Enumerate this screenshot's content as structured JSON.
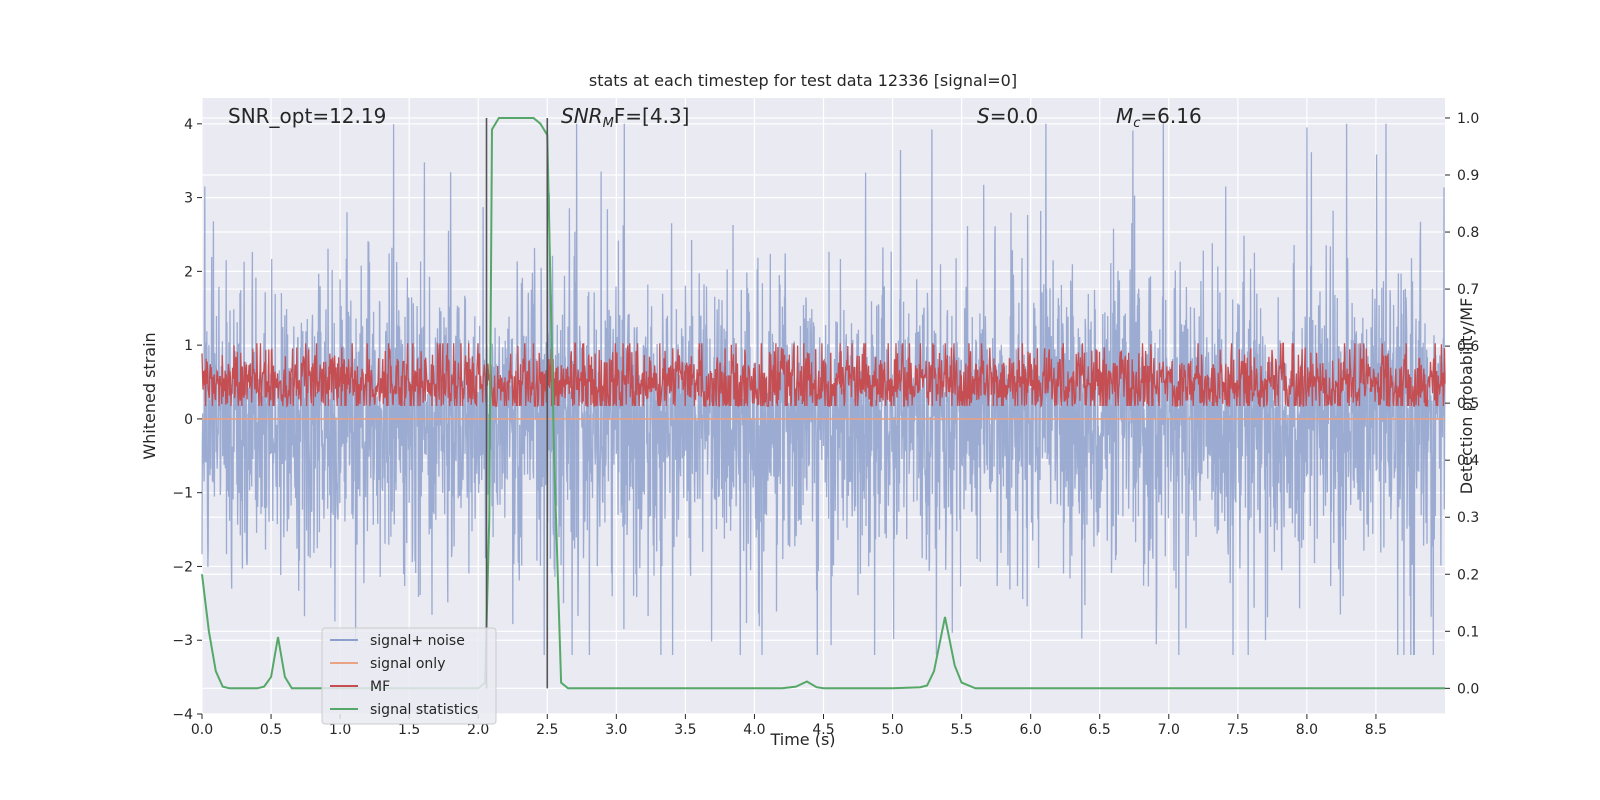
{
  "chart_data": {
    "type": "line",
    "title": "stats at each timestep for test data 12336 [signal=0]",
    "xlabel": "Time (s)",
    "ylabel": "Whitened strain",
    "y2label": "Detection probability/MF",
    "xlim": [
      0,
      9.0
    ],
    "ylim": [
      -4.0,
      4.35
    ],
    "y2lim": [
      -0.045,
      1.035
    ],
    "xticks": [
      0.0,
      0.5,
      1.0,
      1.5,
      2.0,
      2.5,
      3.0,
      3.5,
      4.0,
      4.5,
      5.0,
      5.5,
      6.0,
      6.5,
      7.0,
      7.5,
      8.0,
      8.5
    ],
    "xtick_labels": [
      "0.0",
      "0.5",
      "1.0",
      "1.5",
      "2.0",
      "2.5",
      "3.0",
      "3.5",
      "4.0",
      "4.5",
      "5.0",
      "5.5",
      "6.0",
      "6.5",
      "7.0",
      "7.5",
      "8.0",
      "8.5"
    ],
    "yticks": [
      4,
      3,
      2,
      1,
      0,
      -1,
      -2,
      -3,
      -4
    ],
    "ytick_labels": [
      "4",
      "3",
      "2",
      "1",
      "0",
      "−1",
      "−2",
      "−3",
      "−4"
    ],
    "y2ticks": [
      1.0,
      0.9,
      0.8,
      0.7,
      0.6,
      0.5,
      0.4,
      0.3,
      0.2,
      0.1,
      0.0
    ],
    "y2tick_labels": [
      "1.0",
      "0.9",
      "0.8",
      "0.7",
      "0.6",
      "0.5",
      "0.4",
      "0.3",
      "0.2",
      "0.1",
      "0.0"
    ],
    "annotations": {
      "snr_opt": "SNR_opt=12.19",
      "snr_mf_main": "SNR",
      "snr_mf_sub": "M",
      "snr_mf_rest": "F=[4.3]",
      "s_main": "S",
      "s_rest": "=0.0",
      "mc_main": "M",
      "mc_sub": "c",
      "mc_rest": "=6.16"
    },
    "vlines": [
      2.06,
      2.5
    ],
    "series": [
      {
        "name": "signal+ noise",
        "color": "#8da0cb",
        "axis": "left",
        "style": "noise",
        "amplitude_range": [
          -3.2,
          4.0
        ],
        "peaks": [
          [
            0.02,
            3.15
          ],
          [
            4.87,
            4.0
          ],
          [
            8.0,
            3.95
          ],
          [
            4.87,
            -3.6
          ],
          [
            7.7,
            -3.0
          ]
        ]
      },
      {
        "name": "signal only",
        "color": "#e8a285",
        "axis": "left",
        "x": [
          0.0,
          9.0
        ],
        "values": [
          0.0,
          0.0
        ]
      },
      {
        "name": "MF",
        "color": "#c44e52",
        "axis": "right",
        "style": "noise",
        "band": [
          0.49,
          0.58
        ]
      },
      {
        "name": "signal statistics",
        "color": "#55a868",
        "axis": "right",
        "x": [
          0.0,
          0.05,
          0.1,
          0.15,
          0.2,
          0.3,
          0.4,
          0.45,
          0.5,
          0.55,
          0.6,
          0.65,
          0.7,
          1.0,
          1.5,
          1.9,
          2.0,
          2.05,
          2.08,
          2.1,
          2.15,
          2.2,
          2.3,
          2.4,
          2.45,
          2.5,
          2.55,
          2.6,
          2.65,
          2.7,
          3.0,
          3.5,
          4.0,
          4.2,
          4.3,
          4.38,
          4.45,
          4.5,
          5.0,
          5.2,
          5.25,
          5.3,
          5.38,
          5.45,
          5.5,
          5.6,
          6.0,
          7.0,
          8.0,
          9.0
        ],
        "values": [
          0.2,
          0.1,
          0.03,
          0.003,
          0.0,
          0.0,
          0.0,
          0.003,
          0.02,
          0.09,
          0.02,
          0.0,
          0.0,
          0.0,
          0.0,
          0.0,
          0.0,
          0.01,
          0.3,
          0.98,
          1.0,
          1.0,
          1.0,
          1.0,
          0.99,
          0.97,
          0.4,
          0.01,
          0.0,
          0.0,
          0.0,
          0.0,
          0.0,
          0.0,
          0.003,
          0.012,
          0.002,
          0.0,
          0.0,
          0.002,
          0.005,
          0.03,
          0.125,
          0.04,
          0.01,
          0.0,
          0.0,
          0.0,
          0.0,
          0.0
        ]
      }
    ],
    "legend": {
      "position": "lower-left",
      "entries": [
        {
          "label": "signal+ noise",
          "color": "#8da0cb"
        },
        {
          "label": "signal only",
          "color": "#e8a285"
        },
        {
          "label": "MF",
          "color": "#c44e52"
        },
        {
          "label": "signal statistics",
          "color": "#55a868"
        }
      ]
    },
    "colors": {
      "plot_bg": "#eaeaf2",
      "grid": "#ffffff",
      "vline": "#555555"
    }
  }
}
